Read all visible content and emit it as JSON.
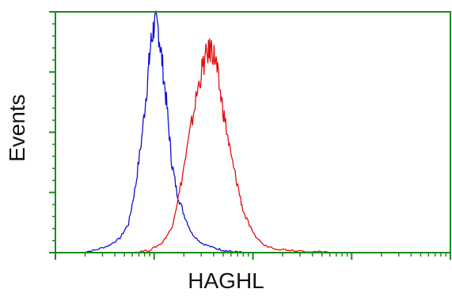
{
  "chart_data": {
    "type": "line",
    "title": "",
    "xlabel": "HAGHL",
    "ylabel": "Events",
    "x_scale": "log",
    "xlim": [
      0.1,
      1000
    ],
    "ylim": [
      0,
      100
    ],
    "grid": false,
    "legend": "none",
    "axis_color": "#1a8a1a",
    "series": [
      {
        "color": "#1010d0",
        "x": [
          0.18,
          0.25,
          0.35,
          0.45,
          0.55,
          0.65,
          0.75,
          0.85,
          0.92,
          1.0,
          1.1,
          1.2,
          1.35,
          1.5,
          1.7,
          2.0,
          2.4,
          3.0,
          4.0,
          5.0,
          6.0,
          8.0
        ],
        "values": [
          0,
          1,
          3,
          6,
          12,
          28,
          48,
          70,
          86,
          95,
          93,
          80,
          60,
          38,
          25,
          16,
          8,
          4,
          2,
          1,
          0.5,
          0
        ]
      },
      {
        "color": "#e01010",
        "x": [
          0.6,
          0.9,
          1.2,
          1.5,
          1.8,
          2.2,
          2.6,
          3.0,
          3.4,
          3.8,
          4.2,
          4.6,
          5.2,
          6.0,
          7.0,
          8.0,
          10.0,
          13.0,
          18.0,
          25.0,
          40.0,
          60.0
        ],
        "values": [
          0,
          1,
          4,
          10,
          25,
          45,
          62,
          75,
          82,
          85,
          80,
          68,
          55,
          40,
          28,
          17,
          8,
          3,
          1.5,
          1,
          0.5,
          0
        ]
      }
    ]
  }
}
